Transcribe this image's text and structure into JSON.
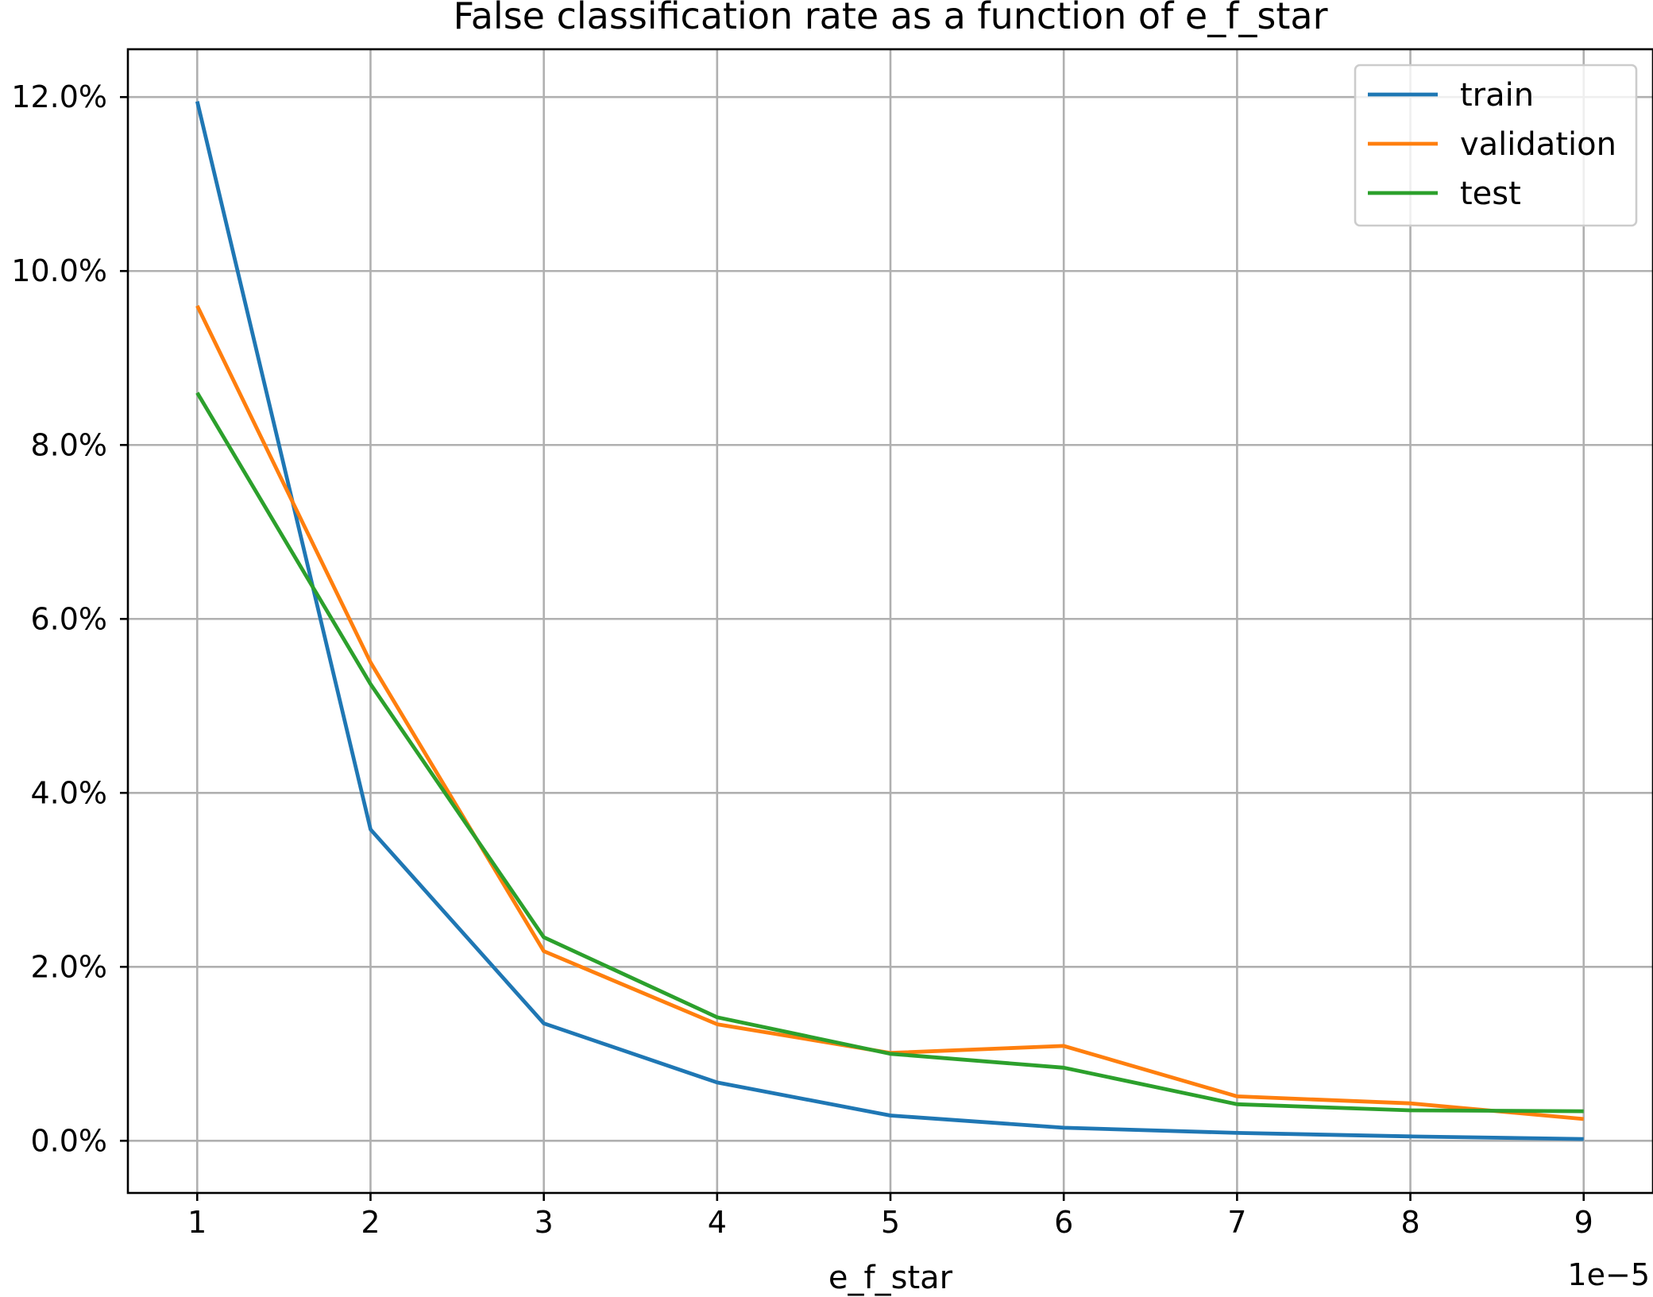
{
  "chart_data": {
    "type": "line",
    "title": "False classification rate as a function of e_f_star",
    "xlabel": "e_f_star",
    "ylabel": "",
    "x_offset_text": "1e−5",
    "x": [
      1,
      2,
      3,
      4,
      5,
      6,
      7,
      8,
      9
    ],
    "x_tick_labels": [
      "1",
      "2",
      "3",
      "4",
      "5",
      "6",
      "7",
      "8",
      "9"
    ],
    "y_tick_values": [
      0,
      2,
      4,
      6,
      8,
      10,
      12
    ],
    "y_tick_labels": [
      "0.0%",
      "2.0%",
      "4.0%",
      "6.0%",
      "8.0%",
      "10.0%",
      "12.0%"
    ],
    "xlim": [
      0.6,
      9.4
    ],
    "ylim": [
      -0.6,
      12.55
    ],
    "grid": true,
    "legend_position": "top-right",
    "series": [
      {
        "name": "train",
        "color": "#1f77b4",
        "values": [
          11.95,
          3.58,
          1.35,
          0.67,
          0.29,
          0.15,
          0.09,
          0.05,
          0.02
        ]
      },
      {
        "name": "validation",
        "color": "#ff7f0e",
        "values": [
          9.6,
          5.5,
          2.18,
          1.34,
          1.01,
          1.09,
          0.51,
          0.43,
          0.25
        ]
      },
      {
        "name": "test",
        "color": "#2ca02c",
        "values": [
          8.6,
          5.25,
          2.34,
          1.42,
          1.0,
          0.84,
          0.42,
          0.35,
          0.34
        ]
      }
    ]
  }
}
